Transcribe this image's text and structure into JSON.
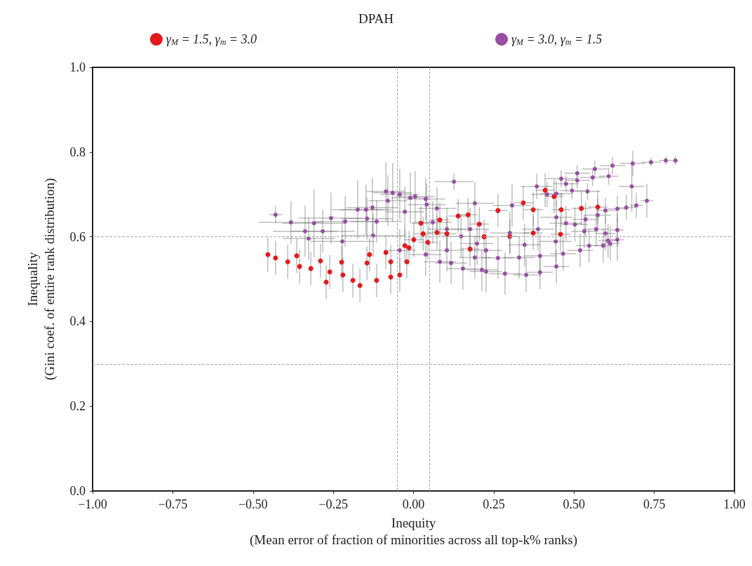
{
  "chart_data": {
    "type": "scatter",
    "title": "DPAH",
    "xlabel": "Inequity\n(Mean error of fraction of minorities across all top-k% ranks)",
    "ylabel": "Inequality\n(Gini coef. of entire rank distribution)",
    "xlim": [
      -1,
      1
    ],
    "xticks": [
      {
        "value": -1,
        "label": "−1.00"
      },
      {
        "value": -0.75,
        "label": "−0.75"
      },
      {
        "value": -0.5,
        "label": "−0.50"
      },
      {
        "value": -0.25,
        "label": "−0.25"
      },
      {
        "value": 0,
        "label": "0.00"
      },
      {
        "value": 0.25,
        "label": "0.25"
      },
      {
        "value": 0.5,
        "label": "0.50"
      },
      {
        "value": 0.75,
        "label": "0.75"
      },
      {
        "value": 1,
        "label": "1.00"
      }
    ],
    "ylim": [
      0,
      1
    ],
    "yticks": [
      {
        "value": 0,
        "label": "0.0"
      },
      {
        "value": 0.2,
        "label": "0.2"
      },
      {
        "value": 0.4,
        "label": "0.4"
      },
      {
        "value": 0.6,
        "label": "0.6"
      },
      {
        "value": 0.8,
        "label": "0.8"
      },
      {
        "value": 1,
        "label": "1.0"
      }
    ],
    "grid": false,
    "legend": "top",
    "marker": "circle",
    "ref_lines": [
      {
        "axis": "x",
        "value": -0.05,
        "color": "#aaaaaa",
        "line_style": "dashed"
      },
      {
        "axis": "x",
        "value": 0.05,
        "color": "#aaaaaa",
        "line_style": "dashed"
      },
      {
        "axis": "y",
        "value": 0.3,
        "color": "#aaaaaa",
        "line_style": "dashed"
      },
      {
        "axis": "y",
        "value": 0.6,
        "color": "#aaaaaa",
        "line_style": "dashed"
      }
    ],
    "series": [
      {
        "name": "γ$_{M}$ = 1.5, γ$_{m}$ = 3.0",
        "color": "#e41a1c",
        "x": [
          -0.454,
          -0.43,
          -0.392,
          -0.364,
          -0.355,
          -0.32,
          -0.29,
          -0.272,
          -0.261,
          -0.224,
          -0.22,
          -0.189,
          -0.167,
          -0.145,
          -0.137,
          -0.115,
          -0.086,
          -0.071,
          -0.071,
          -0.043,
          -0.027,
          -0.021,
          -0.014,
          0.001,
          0.023,
          0.03,
          0.045,
          0.073,
          0.082,
          0.104,
          0.139,
          0.17,
          0.176,
          0.205,
          0.22,
          0.263,
          0.3,
          0.342,
          0.373,
          0.373,
          0.41,
          0.438,
          0.458,
          0.46,
          0.523,
          0.574
        ],
        "values": [
          0.558,
          0.55,
          0.541,
          0.555,
          0.53,
          0.525,
          0.543,
          0.493,
          0.517,
          0.54,
          0.51,
          0.497,
          0.485,
          0.538,
          0.558,
          0.497,
          0.563,
          0.505,
          0.541,
          0.51,
          0.579,
          0.541,
          0.574,
          0.593,
          0.632,
          0.607,
          0.587,
          0.61,
          0.64,
          0.607,
          0.649,
          0.652,
          0.571,
          0.63,
          0.6,
          0.662,
          0.601,
          0.68,
          0.664,
          0.609,
          0.71,
          0.695,
          0.606,
          0.664,
          0.667,
          0.67
        ],
        "errors": [
          0.04,
          0.04,
          0.04,
          0.04,
          0.04,
          0.04,
          0.04,
          0.04,
          0.04,
          0.04,
          0.04,
          0.04,
          0.04,
          0.04,
          0.04,
          0.04,
          0.04,
          0.04,
          0.04,
          0.04,
          0.04,
          0.04,
          0.04,
          0.04,
          0.04,
          0.04,
          0.04,
          0.04,
          0.04,
          0.04,
          0.04,
          0.04,
          0.04,
          0.04,
          0.04,
          0.04,
          0.04,
          0.04,
          0.04,
          0.04,
          0.04,
          0.04,
          0.04,
          0.04,
          0.04,
          0.04
        ],
        "xerrors": [
          null,
          null,
          null,
          null,
          null,
          null,
          null,
          null,
          null,
          null,
          null,
          null,
          null,
          null,
          null,
          null,
          null,
          null,
          null,
          null,
          null,
          null,
          null,
          0.03,
          0.03,
          0.03,
          0.03,
          0.03,
          0.03,
          0.03,
          0.03,
          0.03,
          0.03,
          0.03,
          0.03,
          0.03,
          0.03,
          0.03,
          0.03,
          0.03,
          0.03,
          0.03,
          0.03,
          0.03,
          0.03,
          0.03
        ]
      },
      {
        "name": "γ$_{M}$ = 3.0, γ$_{m}$ = 1.5",
        "color": "#984ea3",
        "x": [
          -0.43,
          -0.382,
          -0.338,
          -0.327,
          -0.31,
          -0.283,
          -0.257,
          -0.222,
          -0.213,
          -0.174,
          -0.148,
          -0.128,
          -0.145,
          -0.115,
          -0.126,
          -0.086,
          -0.065,
          -0.043,
          -0.08,
          -0.027,
          -0.01,
          0.005,
          0.038,
          0.041,
          0.126,
          0.073,
          0.06,
          -0.043,
          0.038,
          0.082,
          0.104,
          0.117,
          0.104,
          0.148,
          0.154,
          0.176,
          0.191,
          0.191,
          0.198,
          0.213,
          0.226,
          0.226,
          0.263,
          0.285,
          0.3,
          0.307,
          0.329,
          0.346,
          0.351,
          0.384,
          0.388,
          0.394,
          0.394,
          0.416,
          0.443,
          0.445,
          0.445,
          0.445,
          0.46,
          0.466,
          0.475,
          0.475,
          0.494,
          0.503,
          0.51,
          0.51,
          0.519,
          0.532,
          0.536,
          0.542,
          0.547,
          0.558,
          0.565,
          0.569,
          0.574,
          0.591,
          0.598,
          0.598,
          0.606,
          0.608,
          0.613,
          0.62,
          0.635,
          0.635,
          0.635,
          0.663,
          0.68,
          0.683,
          0.694,
          0.727,
          0.74,
          0.786,
          0.816
        ],
        "values": [
          0.652,
          0.634,
          0.613,
          0.596,
          0.632,
          0.613,
          0.644,
          0.589,
          0.636,
          0.664,
          0.664,
          0.669,
          0.643,
          0.636,
          0.603,
          0.707,
          0.704,
          0.7,
          0.685,
          0.659,
          0.692,
          0.695,
          0.689,
          0.676,
          0.73,
          0.667,
          0.634,
          0.568,
          0.558,
          0.541,
          0.568,
          0.538,
          0.618,
          0.601,
          0.525,
          0.618,
          0.551,
          0.679,
          0.584,
          0.522,
          0.518,
          0.568,
          0.55,
          0.513,
          0.609,
          0.674,
          0.551,
          0.581,
          0.51,
          0.719,
          0.618,
          0.516,
          0.555,
          0.7,
          0.589,
          0.53,
          0.646,
          0.702,
          0.737,
          0.56,
          0.632,
          0.725,
          0.709,
          0.629,
          0.75,
          0.733,
          0.568,
          0.613,
          0.641,
          0.707,
          0.579,
          0.74,
          0.76,
          0.618,
          0.651,
          0.579,
          0.608,
          0.662,
          0.591,
          0.743,
          0.584,
          0.768,
          0.593,
          0.616,
          0.666,
          0.669,
          0.719,
          0.773,
          0.674,
          0.685,
          0.776,
          0.78,
          0.78
        ],
        "errors": [
          0.02,
          0.05,
          0.06,
          0.05,
          0.08,
          0.05,
          0.06,
          0.05,
          0.06,
          0.07,
          0.06,
          0.07,
          0.05,
          0.05,
          0.05,
          0.07,
          0.07,
          0.06,
          0.06,
          0.06,
          0.06,
          0.06,
          0.05,
          0.05,
          0.02,
          0.05,
          0.05,
          0.05,
          0.05,
          0.05,
          0.05,
          0.05,
          0.05,
          0.05,
          0.05,
          0.05,
          0.05,
          0.05,
          0.05,
          0.05,
          0.05,
          0.05,
          0.05,
          0.05,
          0.05,
          0.05,
          0.05,
          0.05,
          0.04,
          0.03,
          0.05,
          0.04,
          0.05,
          0.03,
          0.05,
          0.04,
          0.04,
          0.03,
          0.02,
          0.04,
          0.04,
          0.02,
          0.02,
          0.04,
          0.02,
          0.02,
          0.04,
          0.04,
          0.04,
          0.02,
          0.04,
          0.02,
          0.02,
          0.04,
          0.04,
          0.04,
          0.04,
          0.03,
          0.04,
          0.02,
          0.04,
          0.02,
          0.05,
          0.04,
          0.03,
          0.03,
          0.06,
          0.03,
          0.03,
          0.04,
          0.01,
          0.01,
          0.01
        ],
        "xerrors": [
          0.02,
          0.1,
          0.1,
          0.08,
          0.1,
          0.1,
          0.1,
          0.1,
          0.1,
          0.08,
          0.08,
          0.08,
          0.08,
          0.08,
          0.1,
          0.06,
          0.06,
          0.06,
          0.06,
          0.06,
          0.06,
          0.06,
          0.06,
          0.06,
          0.06,
          0.06,
          0.06,
          0.05,
          0.05,
          0.05,
          0.05,
          0.05,
          0.06,
          0.06,
          0.05,
          0.06,
          0.05,
          0.06,
          0.05,
          0.05,
          0.05,
          0.05,
          0.05,
          0.05,
          0.06,
          0.06,
          0.05,
          0.05,
          0.04,
          0.05,
          0.05,
          0.04,
          0.05,
          0.05,
          0.05,
          0.04,
          0.05,
          0.05,
          0.05,
          0.04,
          0.05,
          0.04,
          0.04,
          0.04,
          0.04,
          0.04,
          0.04,
          0.04,
          0.04,
          0.04,
          0.04,
          0.04,
          0.04,
          0.04,
          0.04,
          0.03,
          0.03,
          0.03,
          0.03,
          0.03,
          0.03,
          0.04,
          0.02,
          0.02,
          0.03,
          0.03,
          0.04,
          0.04,
          0.02,
          0.02,
          0.03,
          0.02,
          0.01
        ]
      }
    ]
  }
}
